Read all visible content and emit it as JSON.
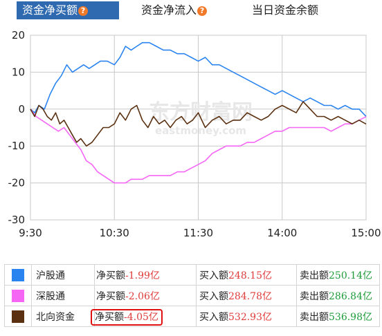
{
  "tabs": [
    {
      "label": "资金净买额",
      "active": true,
      "help": "?"
    },
    {
      "label": "资金净流入",
      "active": false,
      "help": "?"
    },
    {
      "label": "当日资金余额",
      "active": false
    }
  ],
  "watermark": {
    "cn": "东方财富网",
    "en": "eastmoney.com"
  },
  "colors": {
    "hgt": "#2a84f0",
    "sgt": "#f566f5",
    "north": "#5a3010",
    "tab_active": "#2f6ab0"
  },
  "chart_data": {
    "type": "line",
    "x_ticks": [
      "9:30",
      "10:30",
      "11:30",
      "14:00",
      "15:00"
    ],
    "y_ticks": [
      "20",
      "10",
      "0",
      "-10",
      "-20",
      "-30"
    ],
    "ylim": [
      -30,
      20
    ],
    "xlim_minutes": [
      0,
      240
    ],
    "grid": true,
    "series": [
      {
        "name": "沪股通",
        "color": "#2a84f0",
        "x": [
          0,
          3,
          6,
          10,
          14,
          18,
          22,
          26,
          30,
          34,
          38,
          42,
          46,
          50,
          55,
          60,
          64,
          68,
          72,
          76,
          80,
          85,
          90,
          95,
          100,
          105,
          110,
          115,
          120,
          125,
          130,
          135,
          140,
          145,
          150,
          155,
          160,
          165,
          170,
          175,
          180,
          185,
          190,
          195,
          200,
          205,
          210,
          215,
          220,
          225,
          230,
          235,
          240
        ],
        "y": [
          0,
          -1,
          1,
          0,
          4,
          7,
          9,
          12,
          10,
          11,
          12,
          11,
          12,
          13,
          13,
          12,
          14,
          17,
          16,
          17,
          18,
          18,
          17,
          16,
          16,
          15,
          15,
          14,
          13,
          14,
          12,
          12,
          11,
          10,
          9,
          8,
          7,
          6,
          5,
          4,
          5,
          4,
          3,
          2,
          3,
          2,
          1,
          1,
          0,
          1,
          0,
          0,
          -1.99
        ]
      },
      {
        "name": "深股通",
        "color": "#f566f5",
        "x": [
          0,
          4,
          8,
          12,
          16,
          20,
          24,
          28,
          32,
          36,
          40,
          44,
          48,
          52,
          56,
          60,
          64,
          68,
          72,
          76,
          80,
          85,
          90,
          95,
          100,
          105,
          110,
          115,
          120,
          125,
          130,
          135,
          140,
          145,
          150,
          155,
          160,
          165,
          170,
          175,
          180,
          185,
          190,
          195,
          200,
          205,
          210,
          215,
          220,
          225,
          230,
          235,
          240
        ],
        "y": [
          0,
          -2,
          -3,
          -4,
          -5,
          -6,
          -5,
          -7,
          -9,
          -11,
          -14,
          -15,
          -17,
          -18,
          -19,
          -20,
          -20,
          -20,
          -19,
          -19,
          -19,
          -18,
          -18,
          -18,
          -18,
          -17,
          -17,
          -16,
          -15,
          -14,
          -12,
          -11,
          -10,
          -10,
          -10,
          -9,
          -9,
          -8,
          -7,
          -6,
          -6,
          -5,
          -5,
          -5,
          -5,
          -5,
          -5,
          -6,
          -5,
          -4,
          -4,
          -3,
          -2.06
        ]
      },
      {
        "name": "北向资金",
        "color": "#5a3010",
        "x": [
          0,
          3,
          6,
          9,
          12,
          15,
          18,
          21,
          24,
          27,
          30,
          33,
          36,
          40,
          44,
          48,
          52,
          56,
          60,
          64,
          68,
          72,
          76,
          80,
          84,
          88,
          92,
          96,
          100,
          104,
          108,
          112,
          116,
          120,
          125,
          130,
          135,
          140,
          145,
          150,
          155,
          160,
          165,
          170,
          175,
          180,
          185,
          190,
          195,
          200,
          205,
          210,
          215,
          220,
          225,
          230,
          235,
          240
        ],
        "y": [
          0,
          -2,
          1,
          0,
          -2,
          -3,
          -1,
          -4,
          -3,
          -5,
          -7,
          -9,
          -8,
          -10,
          -9,
          -7,
          -5,
          -5,
          -4,
          -1,
          -3,
          0,
          1,
          -3,
          -5,
          -2,
          -4,
          -3,
          -5,
          -3,
          -2,
          -4,
          -3,
          -1,
          -5,
          -3,
          -2,
          -4,
          -3,
          -3,
          -1,
          -2,
          -3,
          -2,
          0,
          1,
          0,
          -1,
          2,
          0,
          -2,
          -2,
          -3,
          -2,
          -3,
          -4,
          -3,
          -4.05
        ]
      }
    ]
  },
  "table": [
    {
      "color": "#2a84f0",
      "name": "沪股通",
      "net_label": "净买额",
      "net": "-1.99亿",
      "buy_label": "买入额",
      "buy": "248.15亿",
      "sell_label": "卖出额",
      "sell": "250.14亿"
    },
    {
      "color": "#f566f5",
      "name": "深股通",
      "net_label": "净买额",
      "net": "-2.06亿",
      "buy_label": "买入额",
      "buy": "284.78亿",
      "sell_label": "卖出额",
      "sell": "286.84亿"
    },
    {
      "color": "#5a3010",
      "name": "北向资金",
      "net_label": "净买额",
      "net": "-4.05亿",
      "buy_label": "买入额",
      "buy": "532.93亿",
      "sell_label": "卖出额",
      "sell": "536.98亿"
    }
  ]
}
